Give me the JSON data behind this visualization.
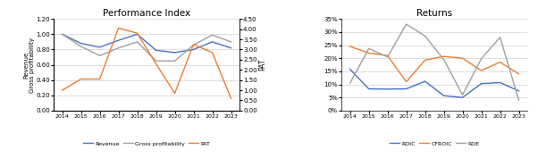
{
  "years": [
    2014,
    2015,
    2016,
    2017,
    2018,
    2019,
    2020,
    2021,
    2022,
    2023
  ],
  "chart1": {
    "title": "Performance Index",
    "ylabel_left": "Revenue\nGross profitability",
    "ylabel_right": "PAT",
    "revenue": [
      1.0,
      0.88,
      0.83,
      0.92,
      1.0,
      0.79,
      0.76,
      0.8,
      0.9,
      0.82
    ],
    "gross_profitability": [
      1.0,
      0.84,
      0.72,
      0.82,
      0.9,
      0.65,
      0.65,
      0.86,
      0.99,
      0.9
    ],
    "pat": [
      1.0,
      1.55,
      1.55,
      4.05,
      3.8,
      2.3,
      0.85,
      3.25,
      2.85,
      0.6
    ],
    "ylim_left": [
      0.0,
      1.2
    ],
    "ylim_right": [
      0.0,
      4.5
    ],
    "yticks_left": [
      0.0,
      0.2,
      0.4,
      0.6,
      0.8,
      1.0,
      1.2
    ],
    "yticks_right": [
      0.0,
      0.5,
      1.0,
      1.5,
      2.0,
      2.5,
      3.0,
      3.5,
      4.0,
      4.5
    ],
    "color_revenue": "#4472C4",
    "color_gross": "#A0A0A0",
    "color_pat": "#ED7D31"
  },
  "chart2": {
    "title": "Returns",
    "roic": [
      0.158,
      0.083,
      0.082,
      0.083,
      0.112,
      0.057,
      0.05,
      0.103,
      0.107,
      0.075
    ],
    "cfroic": [
      0.245,
      0.22,
      0.21,
      0.11,
      0.193,
      0.207,
      0.2,
      0.153,
      0.185,
      0.14
    ],
    "roe": [
      0.105,
      0.237,
      0.205,
      0.33,
      0.285,
      0.195,
      0.06,
      0.198,
      0.28,
      0.04
    ],
    "ylim": [
      0.0,
      0.35
    ],
    "yticks": [
      0.0,
      0.05,
      0.1,
      0.15,
      0.2,
      0.25,
      0.3,
      0.35
    ],
    "color_roic": "#4472C4",
    "color_cfroic": "#ED7D31",
    "color_roe": "#A0A0A0"
  },
  "background_color": "#FFFFFF",
  "grid_color": "#D0D0D0"
}
